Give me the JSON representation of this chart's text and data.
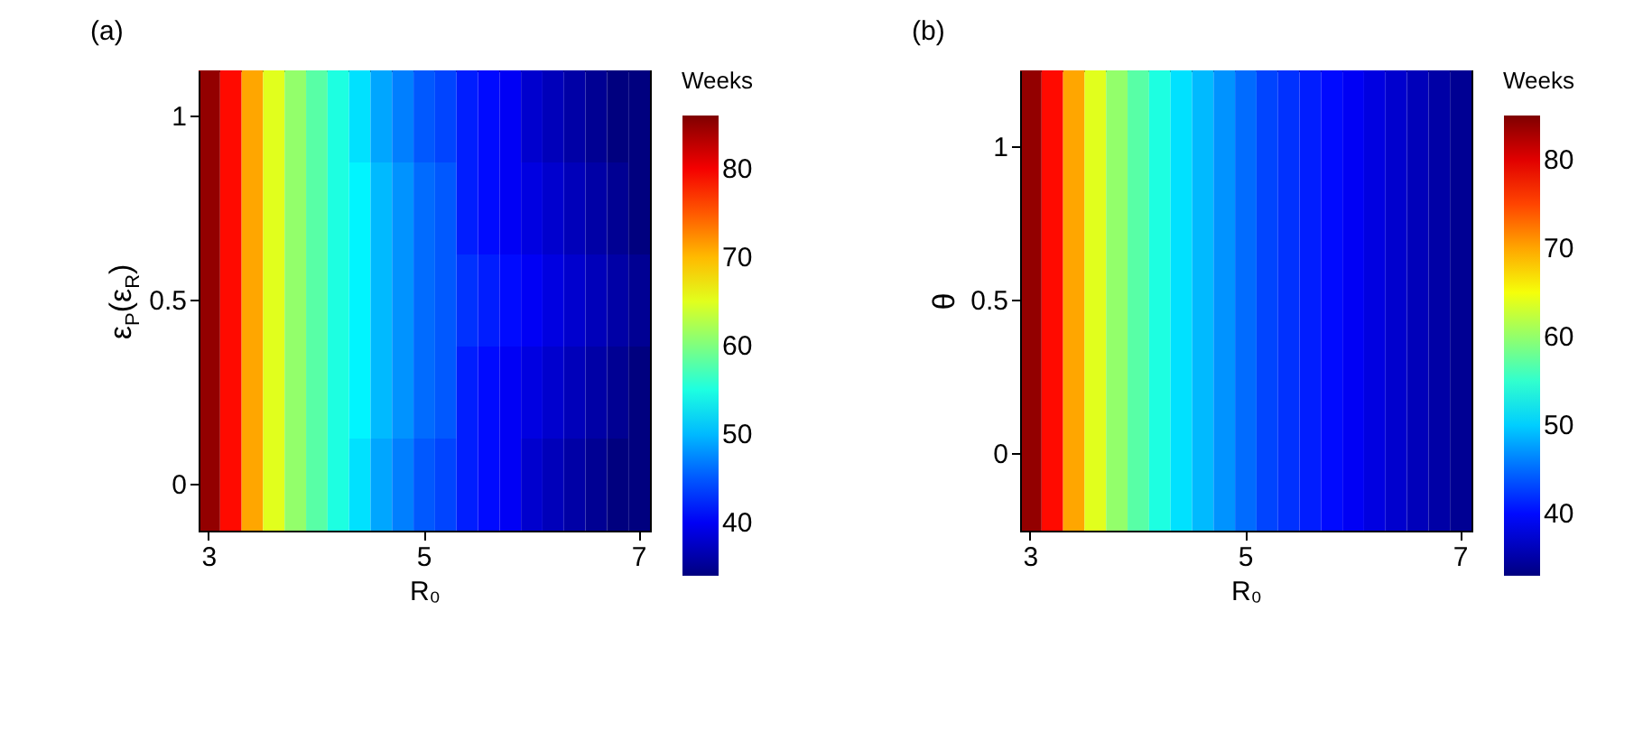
{
  "chart_data": [
    {
      "type": "heatmap",
      "title": "(a)",
      "xlabel": "R₀",
      "ylabel": "ε$_{P}$(ε$_{R}$)",
      "clabel": "Weeks",
      "categories": [
        "3",
        null,
        null,
        null,
        null,
        null,
        null,
        null,
        null,
        null,
        "5",
        null,
        null,
        null,
        null,
        null,
        null,
        null,
        null,
        null,
        "7"
      ],
      "y_categories": [
        "1",
        null,
        "0.5",
        null,
        "0"
      ],
      "cells": [
        [
          85,
          79,
          71,
          65,
          61,
          58,
          55,
          52,
          49,
          47,
          45,
          44,
          42,
          41,
          40,
          38,
          37,
          36,
          35,
          34,
          34
        ],
        [
          85,
          79,
          71,
          65,
          61,
          58,
          55,
          53,
          50,
          48,
          46,
          45,
          42,
          41,
          40,
          39,
          38,
          37,
          36,
          35,
          34
        ],
        [
          85,
          79,
          71,
          65,
          61,
          58,
          55,
          53,
          50,
          48,
          46,
          45,
          43,
          42,
          41,
          40,
          39,
          38,
          37,
          36,
          35
        ],
        [
          85,
          79,
          71,
          65,
          61,
          58,
          55,
          53,
          50,
          48,
          46,
          45,
          42,
          41,
          40,
          39,
          38,
          37,
          36,
          35,
          34
        ],
        [
          85,
          79,
          71,
          65,
          61,
          58,
          55,
          52,
          49,
          47,
          45,
          44,
          42,
          41,
          40,
          38,
          37,
          36,
          35,
          34,
          34
        ]
      ],
      "clim": [
        34,
        86
      ],
      "cticks": [
        40,
        50,
        60,
        70,
        80
      ]
    },
    {
      "type": "heatmap",
      "title": "(b)",
      "xlabel": "R₀",
      "ylabel": "θ",
      "clabel": "Weeks",
      "categories": [
        "3",
        null,
        null,
        null,
        null,
        null,
        null,
        null,
        null,
        null,
        "5",
        null,
        null,
        null,
        null,
        null,
        null,
        null,
        null,
        null,
        "7"
      ],
      "y_categories": [
        "1",
        "0.5",
        "0"
      ],
      "cells": [
        [
          84,
          78,
          70,
          64,
          60,
          57,
          54,
          51,
          49,
          47,
          45,
          43,
          42,
          41,
          40,
          39,
          38,
          37,
          36,
          35,
          34
        ],
        [
          84,
          78,
          70,
          64,
          60,
          57,
          54,
          51,
          49,
          47,
          45,
          43,
          42,
          41,
          40,
          39,
          38,
          37,
          36,
          35,
          34
        ],
        [
          84,
          78,
          70,
          64,
          60,
          57,
          54,
          51,
          49,
          47,
          45,
          43,
          42,
          41,
          40,
          39,
          38,
          37,
          36,
          35,
          34
        ]
      ],
      "clim": [
        33,
        85
      ],
      "cticks": [
        40,
        50,
        60,
        70,
        80
      ]
    }
  ]
}
